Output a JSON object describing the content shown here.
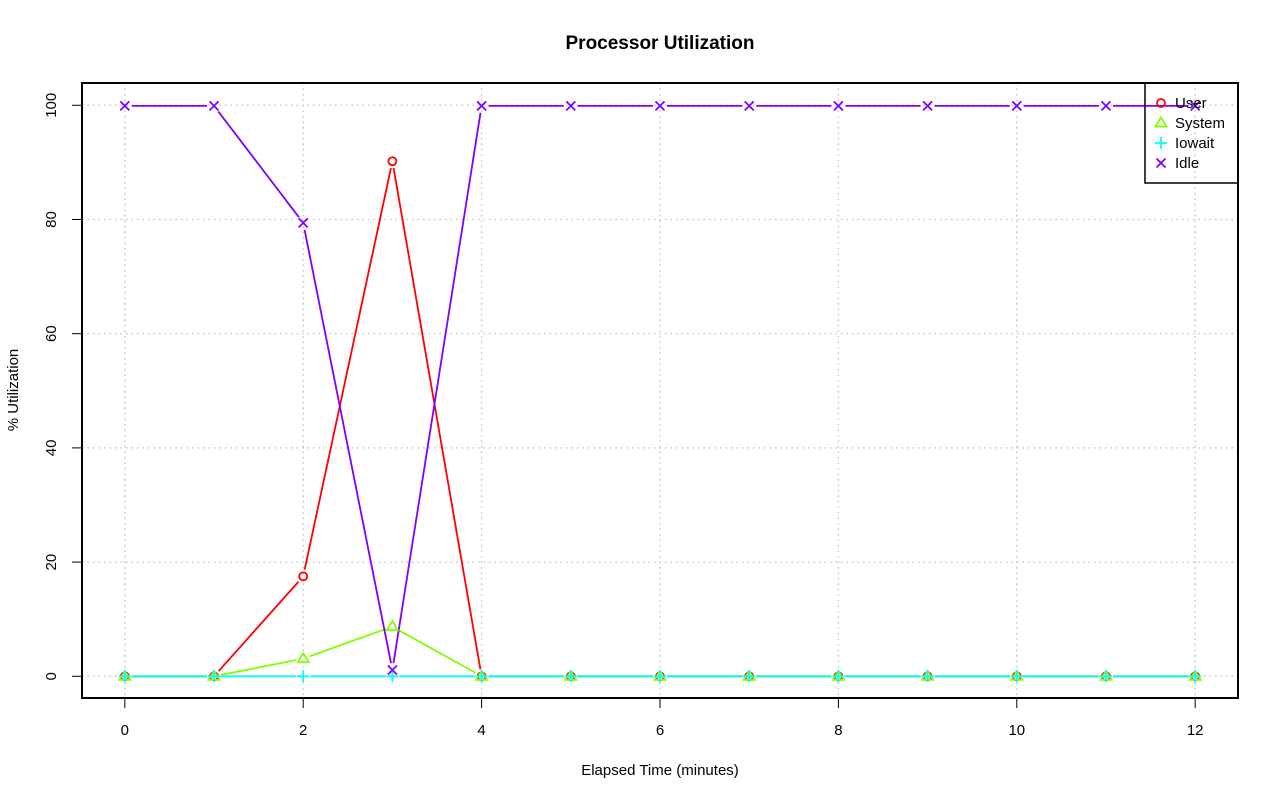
{
  "chart_data": {
    "type": "line",
    "title": "Processor Utilization",
    "xlabel": "Elapsed Time (minutes)",
    "ylabel": "% Utilization",
    "xlim": [
      -0.48,
      12.48
    ],
    "ylim": [
      -3.8,
      103.9
    ],
    "xticks": [
      0,
      2,
      4,
      6,
      8,
      10,
      12
    ],
    "yticks": [
      0,
      20,
      40,
      60,
      80,
      100
    ],
    "grid": true,
    "legend_position": "top-right",
    "x": [
      0,
      1,
      2,
      3,
      4,
      5,
      6,
      7,
      8,
      9,
      10,
      11,
      12
    ],
    "series": [
      {
        "name": "User",
        "marker": "circle",
        "color": "#ff0000",
        "values": [
          0,
          0,
          17.5,
          90.2,
          0,
          0,
          0,
          0,
          0,
          0,
          0,
          0,
          0
        ]
      },
      {
        "name": "System",
        "marker": "triangle",
        "color": "#80ff00",
        "values": [
          0,
          0,
          3.1,
          8.7,
          0,
          0,
          0,
          0,
          0,
          0,
          0,
          0,
          0
        ]
      },
      {
        "name": "Iowait",
        "marker": "plus",
        "color": "#00ffff",
        "values": [
          0,
          0,
          0,
          0,
          0,
          0,
          0,
          0,
          0,
          0,
          0,
          0,
          0
        ]
      },
      {
        "name": "Idle",
        "marker": "cross",
        "color": "#8000ff",
        "values": [
          99.9,
          99.9,
          79.4,
          1.1,
          99.9,
          99.9,
          99.9,
          99.9,
          99.9,
          99.9,
          99.9,
          99.9,
          99.9
        ]
      }
    ]
  }
}
